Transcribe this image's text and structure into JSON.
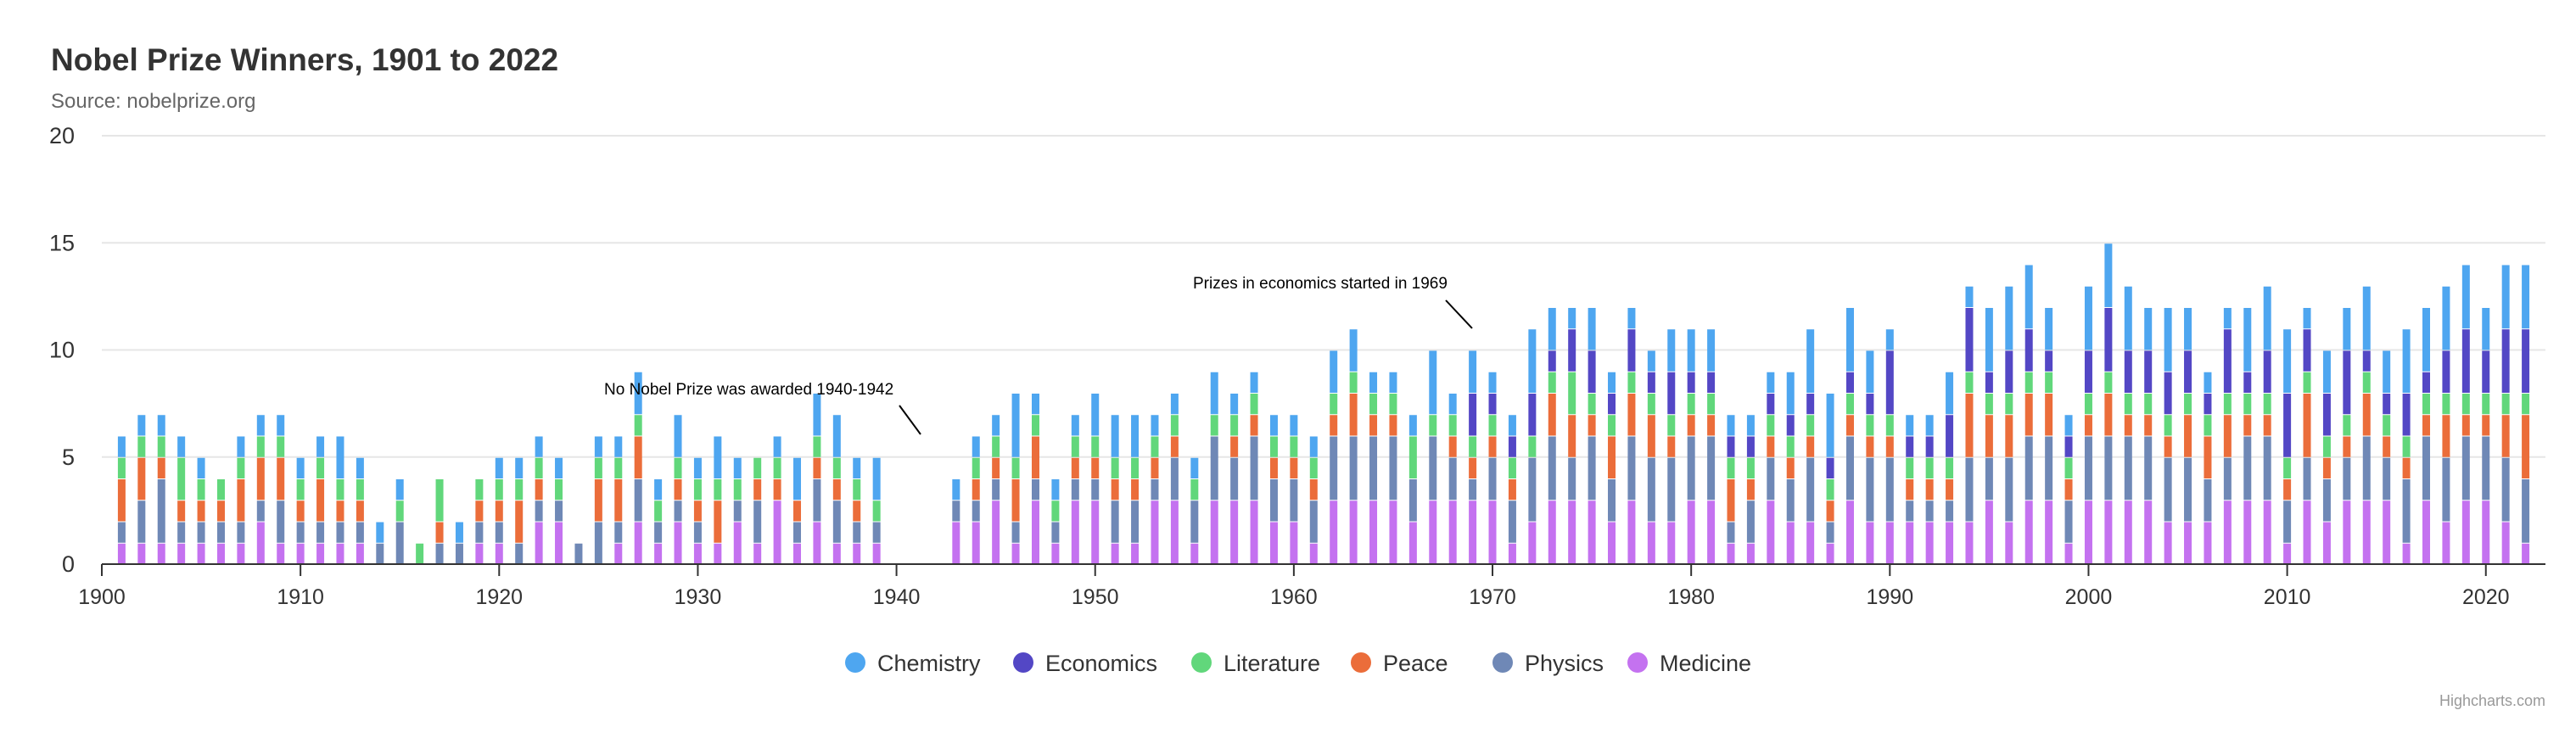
{
  "chart_data": {
    "type": "bar",
    "stacked": true,
    "title": "Nobel Prize Winners, 1901 to 2022",
    "subtitle": "Source: nobelprize.org",
    "credits": "Highcharts.com",
    "xlabel": "",
    "ylabel": "",
    "xlim": [
      1900,
      2023
    ],
    "ylim": [
      0,
      20
    ],
    "x_ticks": [
      "1900",
      "1910",
      "1920",
      "1930",
      "1940",
      "1950",
      "1960",
      "1970",
      "1980",
      "1990",
      "2000",
      "2010",
      "2020"
    ],
    "y_ticks": [
      "0",
      "5",
      "10",
      "15",
      "20"
    ],
    "grid": true,
    "legend_position": "bottom-center",
    "stack_order_bottom_to_top": [
      "Medicine",
      "Physics",
      "Peace",
      "Literature",
      "Economics",
      "Chemistry"
    ],
    "series": [
      {
        "name": "Chemistry",
        "color": "#4ea6f0"
      },
      {
        "name": "Economics",
        "color": "#5347c5"
      },
      {
        "name": "Literature",
        "color": "#61d77b"
      },
      {
        "name": "Peace",
        "color": "#eb6d3a"
      },
      {
        "name": "Physics",
        "color": "#6f88b6"
      },
      {
        "name": "Medicine",
        "color": "#c472f0"
      }
    ],
    "years": [
      1901,
      1902,
      1903,
      1904,
      1905,
      1906,
      1907,
      1908,
      1909,
      1910,
      1911,
      1912,
      1913,
      1914,
      1915,
      1916,
      1917,
      1918,
      1919,
      1920,
      1921,
      1922,
      1923,
      1924,
      1925,
      1926,
      1927,
      1928,
      1929,
      1930,
      1931,
      1932,
      1933,
      1934,
      1935,
      1936,
      1937,
      1938,
      1939,
      1940,
      1941,
      1942,
      1943,
      1944,
      1945,
      1946,
      1947,
      1948,
      1949,
      1950,
      1951,
      1952,
      1953,
      1954,
      1955,
      1956,
      1957,
      1958,
      1959,
      1960,
      1961,
      1962,
      1963,
      1964,
      1965,
      1966,
      1967,
      1968,
      1969,
      1970,
      1971,
      1972,
      1973,
      1974,
      1975,
      1976,
      1977,
      1978,
      1979,
      1980,
      1981,
      1982,
      1983,
      1984,
      1985,
      1986,
      1987,
      1988,
      1989,
      1990,
      1991,
      1992,
      1993,
      1994,
      1995,
      1996,
      1997,
      1998,
      1999,
      2000,
      2001,
      2002,
      2003,
      2004,
      2005,
      2006,
      2007,
      2008,
      2009,
      2010,
      2011,
      2012,
      2013,
      2014,
      2015,
      2016,
      2017,
      2018,
      2019,
      2020,
      2021,
      2022
    ],
    "winners": {
      "Medicine": [
        1,
        1,
        1,
        1,
        1,
        1,
        1,
        2,
        1,
        1,
        1,
        1,
        1,
        0,
        0,
        0,
        0,
        0,
        1,
        1,
        0,
        2,
        2,
        0,
        0,
        1,
        2,
        1,
        2,
        1,
        1,
        2,
        1,
        3,
        1,
        2,
        1,
        1,
        1,
        0,
        0,
        0,
        2,
        2,
        3,
        1,
        3,
        1,
        3,
        3,
        1,
        1,
        3,
        3,
        1,
        3,
        3,
        3,
        2,
        2,
        1,
        3,
        3,
        3,
        3,
        2,
        3,
        3,
        3,
        3,
        1,
        2,
        3,
        3,
        3,
        2,
        3,
        2,
        2,
        3,
        3,
        1,
        1,
        3,
        2,
        2,
        1,
        3,
        2,
        2,
        2,
        2,
        2,
        2,
        3,
        2,
        3,
        3,
        1,
        3,
        3,
        3,
        3,
        2,
        2,
        2,
        3,
        3,
        3,
        1,
        3,
        2,
        3,
        3,
        3,
        1,
        3,
        2,
        3,
        3,
        2,
        1
      ],
      "Physics": [
        1,
        2,
        3,
        1,
        1,
        1,
        1,
        1,
        2,
        1,
        1,
        1,
        1,
        1,
        2,
        0,
        1,
        1,
        1,
        1,
        1,
        1,
        1,
        1,
        2,
        1,
        2,
        1,
        1,
        1,
        0,
        1,
        2,
        0,
        1,
        2,
        2,
        1,
        1,
        0,
        0,
        0,
        1,
        1,
        1,
        1,
        1,
        1,
        1,
        1,
        2,
        2,
        1,
        2,
        2,
        3,
        2,
        3,
        2,
        2,
        2,
        3,
        3,
        3,
        3,
        2,
        3,
        2,
        1,
        2,
        2,
        3,
        3,
        2,
        3,
        2,
        3,
        3,
        3,
        3,
        3,
        1,
        2,
        2,
        2,
        3,
        1,
        3,
        3,
        3,
        1,
        1,
        1,
        3,
        2,
        3,
        3,
        3,
        2,
        3,
        3,
        3,
        3,
        3,
        3,
        2,
        2,
        3,
        3,
        2,
        2,
        2,
        2,
        3,
        2,
        3,
        3,
        3,
        3,
        3,
        3,
        3
      ],
      "Peace": [
        2,
        2,
        1,
        1,
        1,
        1,
        2,
        2,
        2,
        1,
        2,
        1,
        1,
        0,
        0,
        0,
        1,
        0,
        1,
        1,
        2,
        1,
        0,
        0,
        2,
        2,
        2,
        0,
        1,
        1,
        2,
        0,
        1,
        1,
        1,
        1,
        1,
        1,
        0,
        0,
        0,
        0,
        0,
        1,
        1,
        2,
        2,
        0,
        1,
        1,
        1,
        1,
        1,
        1,
        0,
        0,
        1,
        1,
        1,
        1,
        1,
        1,
        2,
        1,
        1,
        0,
        0,
        1,
        1,
        1,
        1,
        0,
        2,
        2,
        1,
        2,
        2,
        2,
        1,
        1,
        1,
        2,
        1,
        1,
        1,
        1,
        1,
        1,
        1,
        1,
        1,
        1,
        1,
        3,
        2,
        2,
        2,
        2,
        1,
        1,
        2,
        1,
        1,
        1,
        2,
        2,
        2,
        1,
        1,
        1,
        3,
        1,
        1,
        2,
        1,
        1,
        1,
        2,
        1,
        1,
        2,
        3
      ],
      "Literature": [
        1,
        1,
        1,
        2,
        1,
        1,
        1,
        1,
        1,
        1,
        1,
        1,
        1,
        0,
        1,
        1,
        2,
        0,
        1,
        1,
        1,
        1,
        1,
        0,
        1,
        1,
        1,
        1,
        1,
        1,
        1,
        1,
        1,
        1,
        0,
        1,
        1,
        1,
        1,
        0,
        0,
        0,
        0,
        1,
        1,
        1,
        1,
        1,
        1,
        1,
        1,
        1,
        1,
        1,
        1,
        1,
        1,
        1,
        1,
        1,
        1,
        1,
        1,
        1,
        1,
        2,
        1,
        1,
        1,
        1,
        1,
        1,
        1,
        2,
        1,
        1,
        1,
        1,
        1,
        1,
        1,
        1,
        1,
        1,
        1,
        1,
        1,
        1,
        1,
        1,
        1,
        1,
        1,
        1,
        1,
        1,
        1,
        1,
        1,
        1,
        1,
        1,
        1,
        1,
        1,
        1,
        1,
        1,
        1,
        1,
        1,
        1,
        1,
        1,
        1,
        1,
        1,
        1,
        1,
        1,
        1,
        1
      ],
      "Economics": [
        0,
        0,
        0,
        0,
        0,
        0,
        0,
        0,
        0,
        0,
        0,
        0,
        0,
        0,
        0,
        0,
        0,
        0,
        0,
        0,
        0,
        0,
        0,
        0,
        0,
        0,
        0,
        0,
        0,
        0,
        0,
        0,
        0,
        0,
        0,
        0,
        0,
        0,
        0,
        0,
        0,
        0,
        0,
        0,
        0,
        0,
        0,
        0,
        0,
        0,
        0,
        0,
        0,
        0,
        0,
        0,
        0,
        0,
        0,
        0,
        0,
        0,
        0,
        0,
        0,
        0,
        0,
        0,
        2,
        1,
        1,
        2,
        1,
        2,
        2,
        1,
        2,
        1,
        2,
        1,
        1,
        1,
        1,
        1,
        1,
        1,
        1,
        1,
        1,
        3,
        1,
        1,
        2,
        3,
        1,
        2,
        2,
        1,
        1,
        2,
        3,
        2,
        2,
        2,
        2,
        1,
        3,
        1,
        2,
        3,
        2,
        2,
        3,
        1,
        1,
        2,
        1,
        2,
        3,
        2,
        3,
        3
      ],
      "Chemistry": [
        1,
        1,
        1,
        1,
        1,
        0,
        1,
        1,
        1,
        1,
        1,
        2,
        1,
        1,
        1,
        0,
        0,
        1,
        0,
        1,
        1,
        1,
        1,
        0,
        1,
        1,
        2,
        1,
        2,
        1,
        2,
        1,
        0,
        1,
        2,
        2,
        2,
        1,
        2,
        0,
        0,
        0,
        1,
        1,
        1,
        3,
        1,
        1,
        1,
        2,
        2,
        2,
        1,
        1,
        1,
        2,
        1,
        1,
        1,
        1,
        1,
        2,
        2,
        1,
        1,
        1,
        3,
        1,
        2,
        1,
        1,
        3,
        2,
        1,
        2,
        1,
        1,
        1,
        2,
        2,
        2,
        1,
        1,
        1,
        2,
        3,
        3,
        3,
        2,
        1,
        1,
        1,
        2,
        1,
        3,
        3,
        3,
        2,
        1,
        3,
        3,
        3,
        2,
        3,
        2,
        1,
        1,
        3,
        3,
        3,
        1,
        2,
        2,
        3,
        2,
        3,
        3,
        3,
        3,
        2,
        3,
        3
      ]
    },
    "annotations": [
      {
        "text": "No Nobel Prize was awarded 1940-1942"
      },
      {
        "text": "Prizes in economics started in 1969"
      }
    ]
  }
}
